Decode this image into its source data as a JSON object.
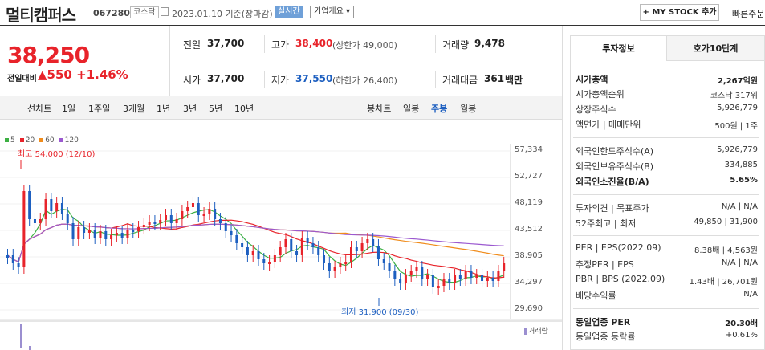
{
  "header": {
    "title": "멀티캠퍼스",
    "code": "067280",
    "market": "코스닥",
    "date_text": "2023.01.10 기준(장마감)",
    "live": "실시간",
    "company_info": "기업개요 ▾",
    "mystock": "+ MY STOCK 추가",
    "quick_order": "빠른주문"
  },
  "quote": {
    "price": "38,250",
    "change_label": "전일대비",
    "change_arrow": "▲",
    "change": "550",
    "change_pct": "+1.46%",
    "prev_label": "전일",
    "prev": "37,700",
    "high_label": "고가",
    "high": "38,400",
    "upper_limit": "(상한가 49,000)",
    "volume_label": "거래량",
    "volume": "9,478",
    "open_label": "시가",
    "open": "37,700",
    "low_label": "저가",
    "low": "37,550",
    "lower_limit": "(하한가 26,400)",
    "amount_label": "거래대금",
    "amount": "361",
    "amount_unit": "백만"
  },
  "toolbar": {
    "line_chart": "선차트",
    "periods": [
      "1일",
      "1주일",
      "3개월",
      "1년",
      "3년",
      "5년",
      "10년"
    ],
    "candle_chart": "봉차트",
    "candles": [
      "일봉",
      "주봉",
      "월봉"
    ],
    "selected_candle": "주봉"
  },
  "chart_data": {
    "type": "candlestick",
    "ma_legend": [
      "5",
      "20",
      "60",
      "120"
    ],
    "ma_colors": [
      "#3cb043",
      "#e8232a",
      "#f08c1c",
      "#9b59d0"
    ],
    "y_ticks": [
      "57,334",
      "52,727",
      "48,119",
      "43,512",
      "38,905",
      "34,297",
      "29,690"
    ],
    "ylim": [
      29690,
      57334
    ],
    "high_note": "최고 54,000 (12/10)",
    "low_note": "최저 31,900 (09/30)",
    "volume_label": "거래량"
  },
  "side": {
    "tabs": [
      "투자정보",
      "호가10단계"
    ],
    "rows": [
      {
        "l": "시가총액",
        "v": "2,267억원",
        "bold": true
      },
      {
        "l": "시가총액순위",
        "v": "코스닥 317위"
      },
      {
        "l": "상장주식수",
        "v": "5,926,779"
      },
      {
        "l": "액면가 | 매매단위",
        "v": "500원 | 1주"
      },
      {
        "l": "외국인한도주식수(A)",
        "v": "5,926,779"
      },
      {
        "l": "외국인보유주식수(B)",
        "v": "334,885"
      },
      {
        "l": "외국인소진율(B/A)",
        "v": "5.65%",
        "bold": true
      },
      {
        "l": "투자의견 | 목표주가",
        "v": "N/A | N/A"
      },
      {
        "l": "52주최고 | 최저",
        "v": "49,850 | 31,900"
      },
      {
        "l": "PER | EPS(2022.09)",
        "v": "8.38배 | 4,563원"
      },
      {
        "l": "추정PER | EPS",
        "v": "N/A | N/A"
      },
      {
        "l": "PBR | BPS (2022.09)",
        "v": "1.43배 | 26,701원"
      },
      {
        "l": "배당수익률",
        "v": "N/A"
      },
      {
        "l": "동일업종 PER",
        "v": "20.30배",
        "bold": true
      },
      {
        "l": "동일업종 등락률",
        "v": "+0.61%",
        "red": true
      }
    ]
  }
}
